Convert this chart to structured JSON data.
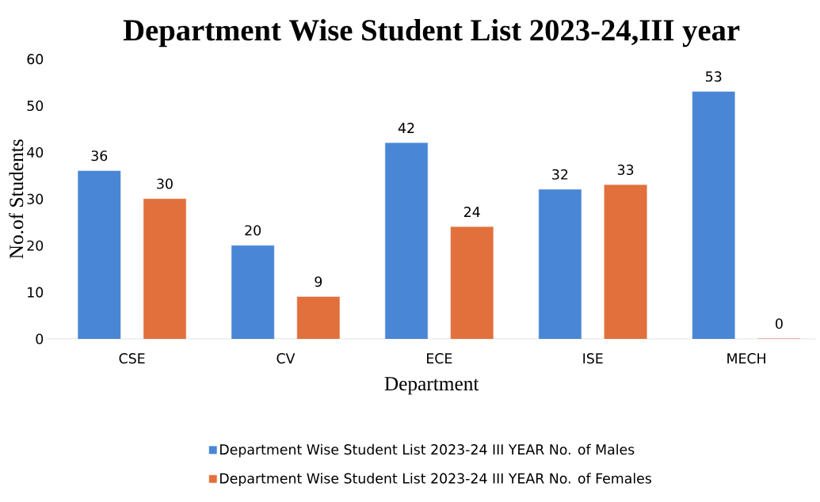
{
  "chart_data": {
    "type": "bar",
    "title": "Department Wise Student List 2023-24,III year",
    "xlabel": "Department",
    "ylabel": "No.of Students",
    "categories": [
      "CSE",
      "CV",
      "ECE",
      "ISE",
      "MECH"
    ],
    "series": [
      {
        "name": "Department Wise Student List 2023-24 III YEAR No. of Males",
        "color": "#4a86d6",
        "values": [
          36,
          20,
          42,
          32,
          53
        ]
      },
      {
        "name": "Department Wise Student List 2023-24 III YEAR No. of Females",
        "color": "#e2703c",
        "values": [
          30,
          9,
          24,
          33,
          0
        ]
      }
    ],
    "ylim": [
      0,
      60
    ],
    "yticks": [
      0,
      10,
      20,
      30,
      40,
      50,
      60
    ],
    "data_labels": true,
    "legend": "bottom",
    "grid": false
  }
}
